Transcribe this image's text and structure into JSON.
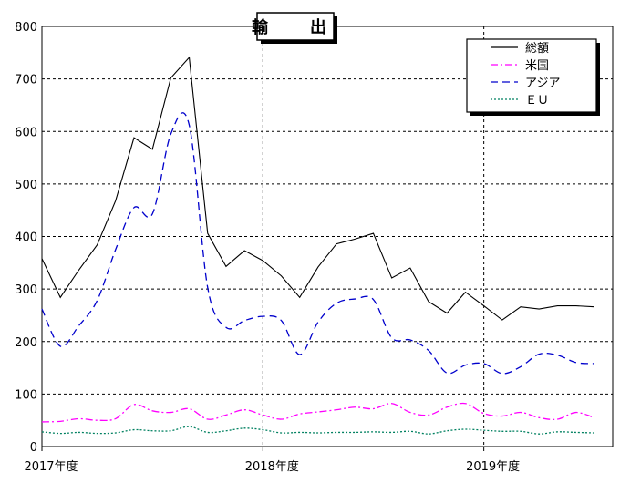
{
  "chart_data": {
    "type": "line",
    "title": "輸　出",
    "xlabel": "",
    "ylabel": "",
    "ylim": [
      0,
      800
    ],
    "yticks": [
      0,
      100,
      200,
      300,
      400,
      500,
      600,
      700,
      800
    ],
    "x_tick_labels": [
      "2017年度",
      "2018年度",
      "2019年度"
    ],
    "x_tick_positions": [
      0,
      12,
      24
    ],
    "grid": true,
    "legend_position": "top-right",
    "x": [
      0,
      1,
      2,
      3,
      4,
      5,
      6,
      7,
      8,
      9,
      10,
      11,
      12,
      13,
      14,
      15,
      16,
      17,
      18,
      19,
      20,
      21,
      22,
      23,
      24,
      25,
      26,
      27,
      28,
      29,
      30,
      31
    ],
    "series": [
      {
        "name": "総額",
        "color": "#000000",
        "dash": "solid",
        "values": [
          358,
          284,
          336,
          384,
          468,
          588,
          566,
          702,
          741,
          406,
          343,
          373,
          354,
          325,
          284,
          342,
          386,
          395,
          406,
          321,
          340,
          276,
          254,
          294,
          268,
          241,
          266,
          262,
          268,
          268,
          266,
          null
        ]
      },
      {
        "name": "米国",
        "color": "#ff00ff",
        "dash": "dashdot",
        "values": [
          47,
          48,
          53,
          50,
          53,
          80,
          68,
          65,
          72,
          52,
          60,
          70,
          60,
          52,
          62,
          66,
          70,
          75,
          72,
          82,
          65,
          60,
          75,
          82,
          63,
          58,
          65,
          55,
          52,
          65,
          55,
          null
        ]
      },
      {
        "name": "アジア",
        "color": "#0000cc",
        "dash": "dash",
        "values": [
          262,
          191,
          230,
          278,
          375,
          455,
          443,
          595,
          612,
          303,
          227,
          240,
          248,
          240,
          175,
          237,
          273,
          281,
          280,
          207,
          203,
          183,
          140,
          155,
          158,
          139,
          152,
          176,
          174,
          160,
          158,
          null
        ]
      },
      {
        "name": "ＥＵ",
        "color": "#008060",
        "dash": "dot",
        "values": [
          28,
          25,
          27,
          25,
          26,
          32,
          30,
          30,
          38,
          27,
          30,
          35,
          32,
          26,
          27,
          26,
          27,
          27,
          28,
          27,
          29,
          24,
          30,
          33,
          31,
          29,
          29,
          24,
          28,
          27,
          26,
          null
        ]
      }
    ],
    "x_max": 31
  }
}
